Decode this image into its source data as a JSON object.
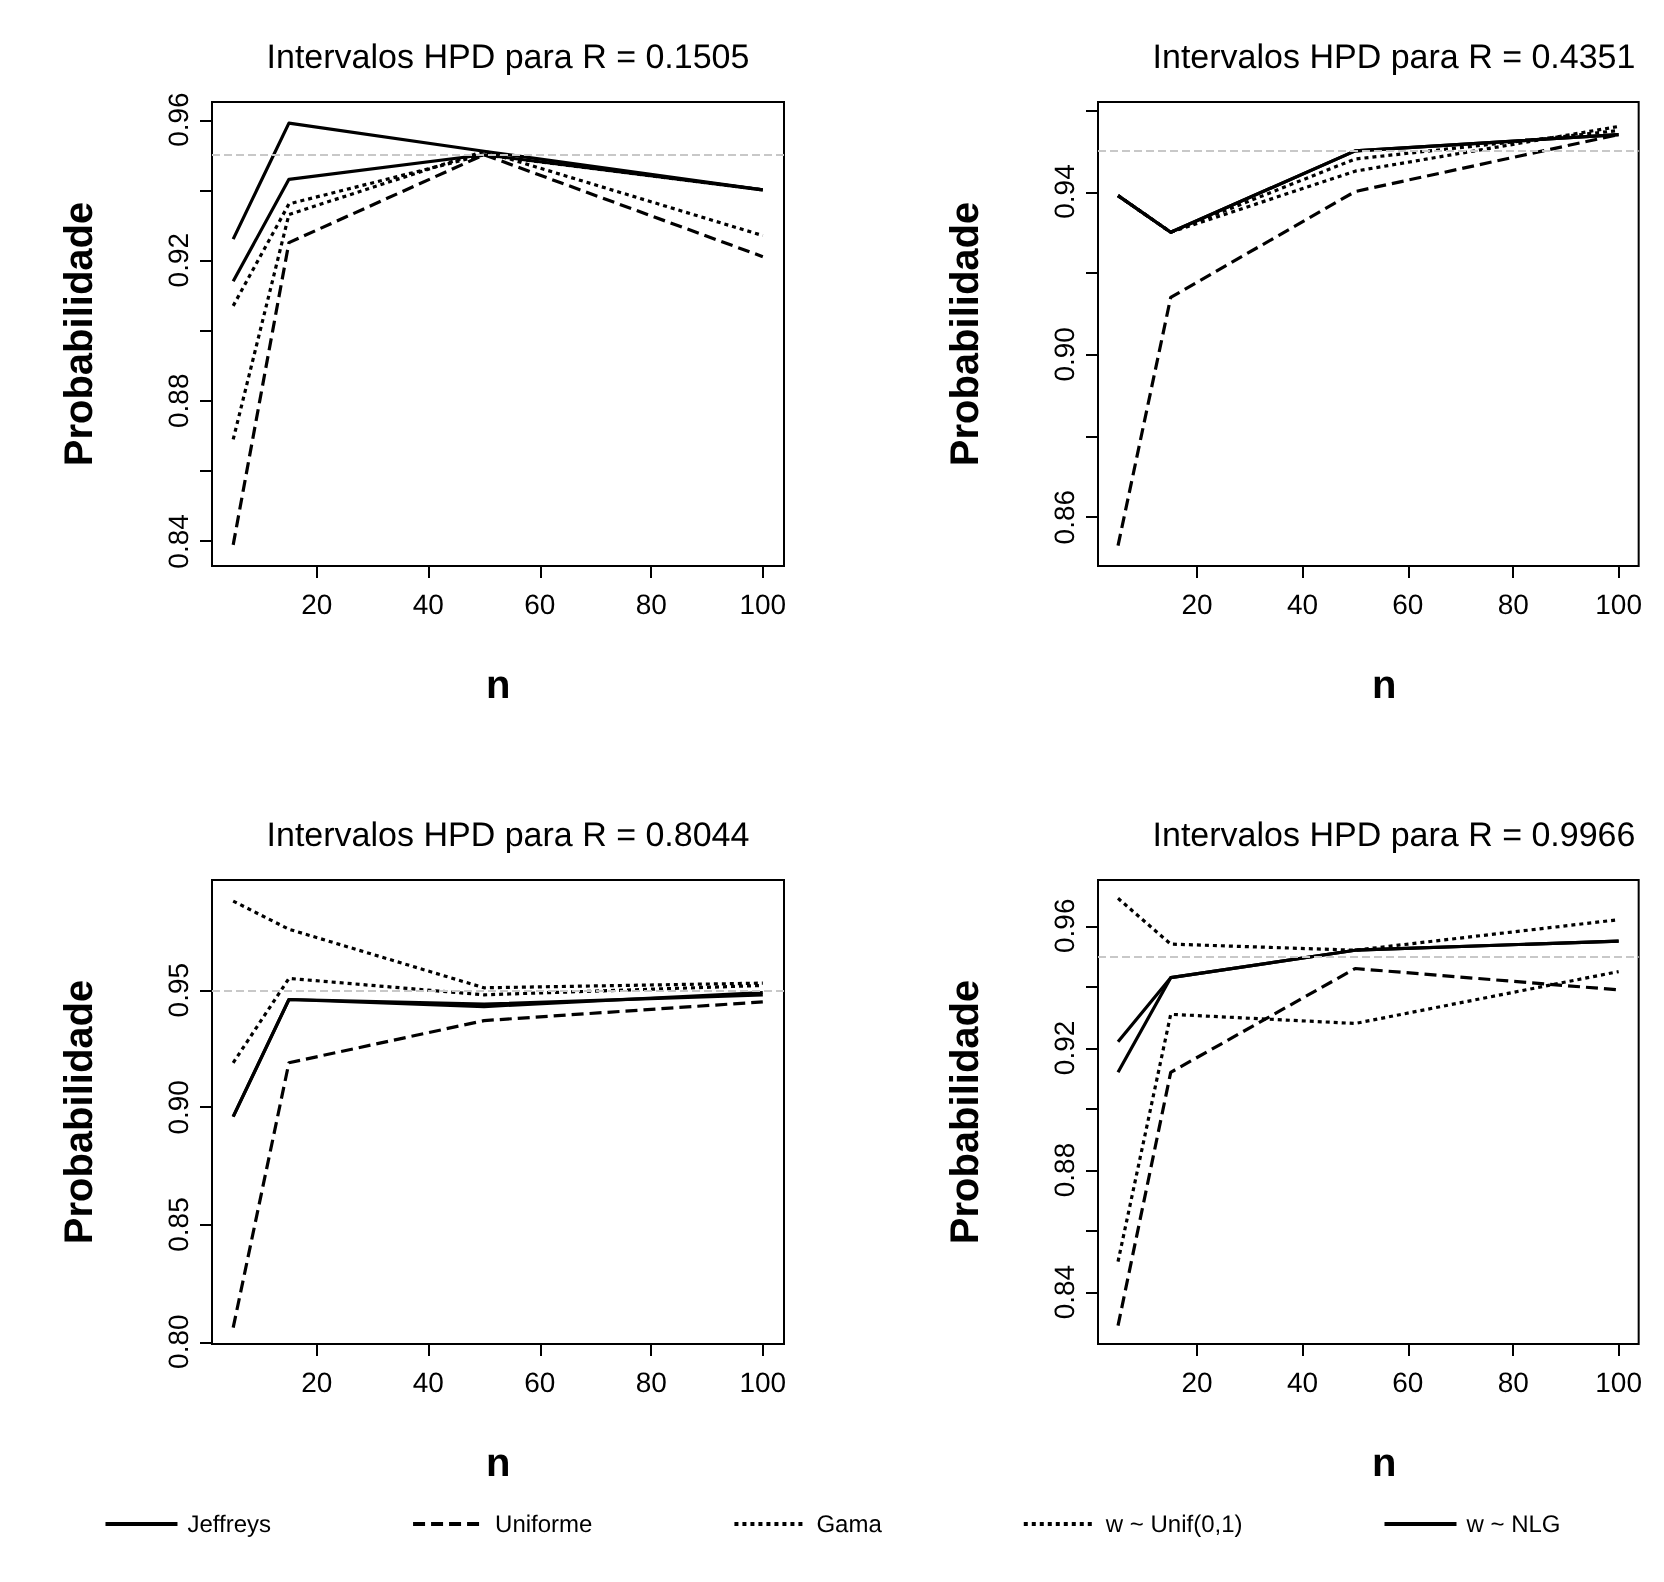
{
  "chart_data": [
    {
      "type": "line",
      "legend": "bottom",
      "title": "Intervalos HPD para R = 0.1505",
      "xlabel": "n",
      "ylabel": "Probabilidade",
      "x": [
        5,
        15,
        50,
        100
      ],
      "xlim": [
        1.2,
        103.8
      ],
      "xticks": [
        20,
        40,
        60,
        80,
        100
      ],
      "ylim": [
        0.833,
        0.965
      ],
      "yticks": [
        0.84,
        {
          "value": 0.86,
          "label": null
        },
        0.88,
        {
          "value": 0.9,
          "label": null
        },
        0.92,
        {
          "value": 0.94,
          "label": null
        },
        0.96
      ],
      "ref_lines": [
        {
          "axis": "y",
          "value": 0.95,
          "color": "#c8c8c8",
          "line_style": "dashed"
        }
      ],
      "series": [
        {
          "name": "Jeffreys",
          "color": "#000000",
          "line_style": "solid",
          "values": [
            0.926,
            0.959,
            0.951,
            0.94
          ]
        },
        {
          "name": "Uniforme",
          "color": "#000000",
          "line_style": "dashed",
          "values": [
            0.839,
            0.925,
            0.95,
            0.921
          ]
        },
        {
          "name": "Gama",
          "color": "#000000",
          "line_style": "dotted",
          "values": [
            0.907,
            0.936,
            0.95,
            0.94
          ]
        },
        {
          "name": "w ~ Unif(0,1)",
          "color": "#000000",
          "line_style": "dotted",
          "values": [
            0.869,
            0.933,
            0.951,
            0.927
          ]
        },
        {
          "name": "w ~ NLG",
          "color": "#000000",
          "line_style": "solid",
          "values": [
            0.914,
            0.943,
            0.95,
            0.94
          ]
        }
      ]
    },
    {
      "type": "line",
      "legend": "bottom",
      "title": "Intervalos HPD para R = 0.4351",
      "xlabel": "n",
      "ylabel": "Probabilidade",
      "x": [
        5,
        15,
        50,
        100
      ],
      "xlim": [
        1.2,
        103.8
      ],
      "xticks": [
        20,
        40,
        60,
        80,
        100
      ],
      "ylim": [
        0.848,
        0.962
      ],
      "yticks": [
        0.86,
        {
          "value": 0.88,
          "label": null
        },
        {
          "value": 0.9,
          "label": "0.90"
        },
        {
          "value": 0.92,
          "label": null
        },
        0.94,
        {
          "value": 0.96,
          "label": null
        }
      ],
      "ref_lines": [
        {
          "axis": "y",
          "value": 0.95,
          "color": "#c8c8c8",
          "line_style": "dashed"
        }
      ],
      "series": [
        {
          "name": "Jeffreys",
          "color": "#000000",
          "line_style": "solid",
          "values": [
            0.939,
            0.93,
            0.95,
            0.954
          ]
        },
        {
          "name": "Uniforme",
          "color": "#000000",
          "line_style": "dashed",
          "values": [
            0.853,
            0.914,
            0.94,
            0.954
          ]
        },
        {
          "name": "Gama",
          "color": "#000000",
          "line_style": "dotted",
          "values": [
            0.939,
            0.93,
            0.948,
            0.955
          ]
        },
        {
          "name": "w ~ Unif(0,1)",
          "color": "#000000",
          "line_style": "dotted",
          "values": [
            0.939,
            0.93,
            0.945,
            0.956
          ]
        },
        {
          "name": "w ~ NLG",
          "color": "#000000",
          "line_style": "solid",
          "values": [
            0.939,
            0.93,
            0.95,
            0.954
          ]
        }
      ]
    },
    {
      "type": "line",
      "legend": "bottom",
      "title": "Intervalos HPD para R = 0.8044",
      "xlabel": "n",
      "ylabel": "Probabilidade",
      "x": [
        5,
        15,
        50,
        100
      ],
      "xlim": [
        1.2,
        103.8
      ],
      "xticks": [
        20,
        40,
        60,
        80,
        100
      ],
      "ylim": [
        0.799,
        0.997
      ],
      "yticks": [
        {
          "value": 0.8,
          "label": "0.80"
        },
        0.85,
        {
          "value": 0.9,
          "label": "0.90"
        },
        0.95
      ],
      "ref_lines": [
        {
          "axis": "y",
          "value": 0.95,
          "color": "#c8c8c8",
          "line_style": "dashed"
        }
      ],
      "series": [
        {
          "name": "Jeffreys",
          "color": "#000000",
          "line_style": "solid",
          "values": [
            0.896,
            0.946,
            0.944,
            0.948
          ]
        },
        {
          "name": "Uniforme",
          "color": "#000000",
          "line_style": "dashed",
          "values": [
            0.806,
            0.919,
            0.937,
            0.945
          ]
        },
        {
          "name": "Gama",
          "color": "#000000",
          "line_style": "dotted",
          "values": [
            0.919,
            0.955,
            0.948,
            0.952
          ]
        },
        {
          "name": "w ~ Unif(0,1)",
          "color": "#000000",
          "line_style": "dotted",
          "values": [
            0.988,
            0.976,
            0.951,
            0.953
          ]
        },
        {
          "name": "w ~ NLG",
          "color": "#000000",
          "line_style": "solid",
          "values": [
            0.896,
            0.946,
            0.943,
            0.949
          ]
        }
      ]
    },
    {
      "type": "line",
      "title": "Intervalos HPD para R = 0.9966",
      "xlabel": "n",
      "ylabel": "Probabilidade",
      "x": [
        5,
        15,
        50,
        100
      ],
      "xlim": [
        1.2,
        103.8
      ],
      "xticks": [
        20,
        40,
        60,
        80,
        100
      ],
      "ylim": [
        0.823,
        0.975
      ],
      "yticks": [
        0.84,
        {
          "value": 0.86,
          "label": null
        },
        0.88,
        {
          "value": 0.9,
          "label": null
        },
        0.92,
        {
          "value": 0.94,
          "label": null
        },
        0.96
      ],
      "ref_lines": [
        {
          "axis": "y",
          "value": 0.95,
          "color": "#c8c8c8",
          "line_style": "dashed"
        }
      ],
      "legend": "bottom",
      "series": [
        {
          "name": "Jeffreys",
          "color": "#000000",
          "line_style": "solid",
          "values": [
            0.912,
            0.943,
            0.952,
            0.955
          ]
        },
        {
          "name": "Uniforme",
          "color": "#000000",
          "line_style": "dashed",
          "values": [
            0.829,
            0.912,
            0.946,
            0.939
          ]
        },
        {
          "name": "Gama",
          "color": "#000000",
          "line_style": "dotted",
          "values": [
            0.969,
            0.954,
            0.952,
            0.962
          ]
        },
        {
          "name": "w ~ Unif(0,1)",
          "color": "#000000",
          "line_style": "dotted",
          "values": [
            0.85,
            0.931,
            0.928,
            0.945
          ]
        },
        {
          "name": "w ~ NLG",
          "color": "#000000",
          "line_style": "solid",
          "values": [
            0.922,
            0.943,
            0.952,
            0.955
          ]
        }
      ]
    }
  ]
}
